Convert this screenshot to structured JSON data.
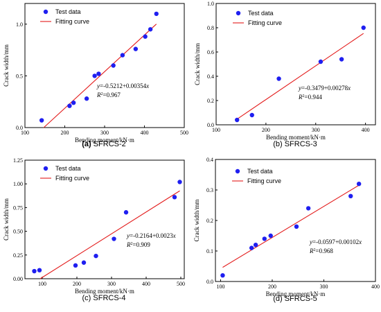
{
  "colors": {
    "marker": "#1f1ff0",
    "fit_line": "#e31a1a",
    "axes": "#000000"
  },
  "chart_data": [
    {
      "type": "scatter",
      "panel_letter": "(a)",
      "panel_name": "SFRCS-2",
      "xlabel": "Bending moment/kN·m",
      "ylabel": "Crack width/mm",
      "xlim": [
        100,
        500
      ],
      "ylim": [
        0,
        1.2
      ],
      "xticks": [
        "100",
        "200",
        "300",
        "400",
        "500"
      ],
      "xtick_values": [
        100,
        200,
        300,
        400,
        500
      ],
      "yticks": [
        "0.0",
        "0.5",
        "1.0"
      ],
      "ytick_values": [
        0,
        0.5,
        1.0
      ],
      "series": [
        {
          "name": "Test data",
          "kind": "points",
          "x": [
            142,
            212,
            222,
            255,
            275,
            285,
            322,
            345,
            378,
            402,
            415,
            430
          ],
          "y": [
            0.07,
            0.21,
            0.24,
            0.28,
            0.5,
            0.52,
            0.6,
            0.7,
            0.76,
            0.88,
            0.95,
            1.1
          ]
        },
        {
          "name": "Fitting curve",
          "kind": "line",
          "intercept": -0.5212,
          "slope": 0.00354,
          "x_range": [
            147,
            430
          ]
        }
      ],
      "equation": "y=-0.5212+0.00354x",
      "r2_label": "R",
      "r2_sup": "2",
      "r2_value": "=0.967",
      "legend": "top-left"
    },
    {
      "type": "scatter",
      "panel_letter": "(b)",
      "panel_name": "SFRCS-3",
      "xlabel": "Bending moment/kN·m",
      "ylabel": "Crack width/mm",
      "xlim": [
        100,
        420
      ],
      "ylim": [
        0,
        1.0
      ],
      "xticks": [
        "100",
        "200",
        "300",
        "400"
      ],
      "xtick_values": [
        100,
        200,
        300,
        400
      ],
      "yticks": [
        "0.0",
        "0.2",
        "0.4",
        "0.6",
        "0.8",
        "1.0"
      ],
      "ytick_values": [
        0,
        0.2,
        0.4,
        0.6,
        0.8,
        1.0
      ],
      "series": [
        {
          "name": "Test data",
          "kind": "points",
          "x": [
            142,
            172,
            226,
            310,
            352,
            396
          ],
          "y": [
            0.04,
            0.08,
            0.38,
            0.52,
            0.54,
            0.8
          ]
        },
        {
          "name": "Fitting curve",
          "kind": "line",
          "intercept": -0.3479,
          "slope": 0.00278,
          "x_range": [
            140,
            396
          ]
        }
      ],
      "equation": "y=-0.3479+0.00278x",
      "r2_label": "R",
      "r2_sup": "2",
      "r2_value": "=0.944",
      "legend": "top-left"
    },
    {
      "type": "scatter",
      "panel_letter": "(c)",
      "panel_name": "SFRCS-4",
      "xlabel": "Bending moment/kN·m",
      "ylabel": "Crack width/mm",
      "xlim": [
        50,
        510
      ],
      "ylim": [
        0,
        1.25
      ],
      "xticks": [
        "100",
        "200",
        "300",
        "400",
        "500"
      ],
      "xtick_values": [
        100,
        200,
        300,
        400,
        500
      ],
      "yticks": [
        "0.00",
        "0.25",
        "0.50",
        "0.75",
        "1.00",
        "1.25"
      ],
      "ytick_values": [
        0,
        0.25,
        0.5,
        0.75,
        1.0,
        1.25
      ],
      "series": [
        {
          "name": "Test data",
          "kind": "points",
          "x": [
            77,
            92,
            196,
            220,
            255,
            307,
            342,
            482,
            497
          ],
          "y": [
            0.08,
            0.09,
            0.14,
            0.17,
            0.24,
            0.42,
            0.7,
            0.86,
            1.02
          ]
        },
        {
          "name": "Fitting curve",
          "kind": "line",
          "intercept": -0.2164,
          "slope": 0.0023,
          "x_range": [
            94,
            497
          ]
        }
      ],
      "equation": "y=-0.2164+0.0023x",
      "r2_label": "R",
      "r2_sup": "2",
      "r2_value": "=0.909",
      "legend": "top-left"
    },
    {
      "type": "scatter",
      "panel_letter": "(d)",
      "panel_name": "SFRCS-5",
      "xlabel": "Bending moment/kN·m",
      "ylabel": "Crack width/mm",
      "xlim": [
        90,
        400
      ],
      "ylim": [
        0,
        0.4
      ],
      "xticks": [
        "100",
        "200",
        "300",
        "400"
      ],
      "xtick_values": [
        100,
        200,
        300,
        400
      ],
      "yticks": [
        "0.0",
        "0.1",
        "0.2",
        "0.3",
        "0.4"
      ],
      "ytick_values": [
        0,
        0.1,
        0.2,
        0.3,
        0.4
      ],
      "series": [
        {
          "name": "Test data",
          "kind": "points",
          "x": [
            104,
            160,
            168,
            185,
            197,
            247,
            270,
            352,
            368
          ],
          "y": [
            0.02,
            0.11,
            0.12,
            0.14,
            0.15,
            0.18,
            0.24,
            0.28,
            0.32
          ]
        },
        {
          "name": "Fitting curve",
          "kind": "line",
          "intercept": -0.0597,
          "slope": 0.00102,
          "x_range": [
            104,
            368
          ]
        }
      ],
      "equation": "y=-0.0597+0.00102x",
      "r2_label": "R",
      "r2_sup": "2",
      "r2_value": "=0.968",
      "legend": "top-left"
    }
  ]
}
